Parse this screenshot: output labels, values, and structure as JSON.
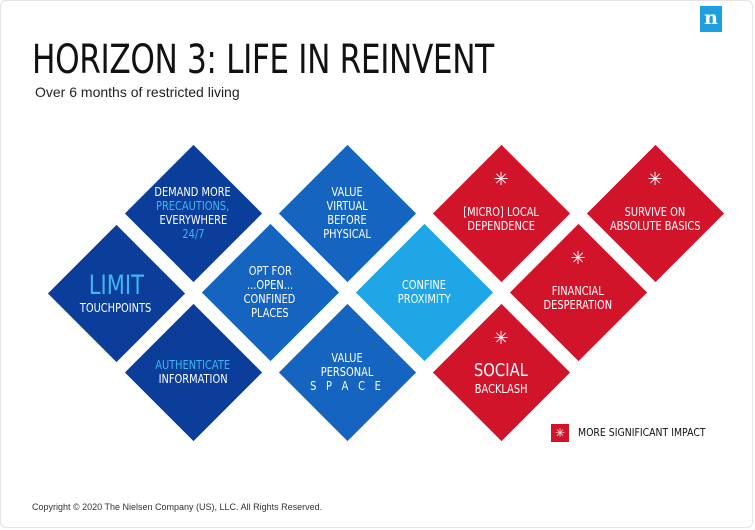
{
  "brand": {
    "logo_letter": "n",
    "logo_color": "#1ea0e0"
  },
  "title": "HORIZON 3: LIFE IN REINVENT",
  "subtitle": "Over 6 months of restricted living",
  "colors": {
    "dark_blue": "#0b3e9b",
    "mid_blue": "#1565c0",
    "light_blue": "#1fa6e6",
    "highlight_blue": "#3fb6f0",
    "red": "#d2142b"
  },
  "tiles": [
    {
      "id": "limit-touchpoints",
      "color": "dark_blue",
      "starred": false,
      "lines": [
        {
          "text": "LIMIT",
          "style": "big-hl"
        },
        {
          "text": "TOUCHPOINTS",
          "style": "normal"
        }
      ]
    },
    {
      "id": "demand-more-precautions",
      "color": "dark_blue",
      "starred": false,
      "lines": [
        {
          "text": "DEMAND MORE",
          "style": "normal"
        },
        {
          "text": "PRECAUTIONS,",
          "style": "hl"
        },
        {
          "text": "EVERYWHERE",
          "style": "normal"
        },
        {
          "text": "24/7",
          "style": "hl"
        }
      ]
    },
    {
      "id": "authenticate-information",
      "color": "dark_blue",
      "starred": false,
      "lines": [
        {
          "text": "AUTHENTICATE",
          "style": "hl"
        },
        {
          "text": "INFORMATION",
          "style": "normal"
        }
      ]
    },
    {
      "id": "opt-for-open-confined",
      "color": "mid_blue",
      "starred": false,
      "lines": [
        {
          "text": "OPT FOR",
          "style": "normal"
        },
        {
          "text": "...OPEN...",
          "style": "normal"
        },
        {
          "text": "CONFINED",
          "style": "normal"
        },
        {
          "text": "PLACES",
          "style": "normal"
        }
      ]
    },
    {
      "id": "value-virtual-before-physical",
      "color": "mid_blue",
      "starred": false,
      "lines": [
        {
          "text": "VALUE",
          "style": "normal"
        },
        {
          "text": "VIRTUAL",
          "style": "normal"
        },
        {
          "text": "BEFORE",
          "style": "normal"
        },
        {
          "text": "PHYSICAL",
          "style": "normal"
        }
      ]
    },
    {
      "id": "value-personal-space",
      "color": "mid_blue",
      "starred": false,
      "lines": [
        {
          "text": "VALUE",
          "style": "normal"
        },
        {
          "text": "PERSONAL",
          "style": "normal"
        },
        {
          "text": "S P A C E",
          "style": "spaced"
        }
      ]
    },
    {
      "id": "confine-proximity",
      "color": "light_blue",
      "starred": false,
      "lines": [
        {
          "text": "CONFINE",
          "style": "normal"
        },
        {
          "text": "PROXIMITY",
          "style": "normal"
        }
      ]
    },
    {
      "id": "micro-local-dependence",
      "color": "red",
      "starred": true,
      "lines": [
        {
          "text": "[MICRO] LOCAL",
          "style": "normal"
        },
        {
          "text": "DEPENDENCE",
          "style": "normal"
        }
      ]
    },
    {
      "id": "social-backlash",
      "color": "red",
      "starred": true,
      "lines": [
        {
          "text": "SOCIAL",
          "style": "medium"
        },
        {
          "text": "BACKLASH",
          "style": "normal"
        }
      ]
    },
    {
      "id": "financial-desperation",
      "color": "red",
      "starred": true,
      "lines": [
        {
          "text": "FINANCIAL",
          "style": "normal"
        },
        {
          "text": "DESPERATION",
          "style": "normal"
        }
      ]
    },
    {
      "id": "survive-on-absolute-basics",
      "color": "red",
      "starred": true,
      "lines": [
        {
          "text": "SURVIVE ON",
          "style": "normal"
        },
        {
          "text": "ABSOLUTE BASICS",
          "style": "normal"
        }
      ]
    }
  ],
  "legend": {
    "label": "MORE SIGNIFICANT IMPACT",
    "icon": "asterisk-icon"
  },
  "copyright": "Copyright © 2020 The Nielsen Company (US), LLC. All Rights Reserved."
}
